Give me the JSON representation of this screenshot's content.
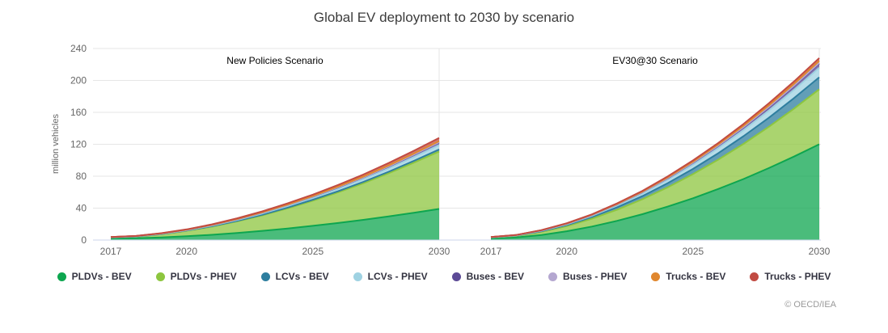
{
  "copyright": "© OECD/IEA",
  "legend": {
    "items": [
      {
        "label": "PLDVs - BEV",
        "color": "#0DA64F"
      },
      {
        "label": "PLDVs - PHEV",
        "color": "#8DC63F"
      },
      {
        "label": "LCVs - BEV",
        "color": "#2E7E9F"
      },
      {
        "label": "LCVs - PHEV",
        "color": "#9FD2E2"
      },
      {
        "label": "Buses - BEV",
        "color": "#5C4A96"
      },
      {
        "label": "Buses - PHEV",
        "color": "#B4A7D0"
      },
      {
        "label": "Trucks - BEV",
        "color": "#E0872E"
      },
      {
        "label": "Trucks - PHEV",
        "color": "#C14B42"
      }
    ]
  },
  "chart_data": {
    "type": "area",
    "stacked": true,
    "title": "Global EV deployment to 2030 by scenario",
    "ylabel": "million vehicles",
    "ylim": [
      0,
      240
    ],
    "y_ticks": [
      0,
      40,
      80,
      120,
      160,
      200,
      240
    ],
    "grid": true,
    "legend_position": "bottom",
    "years": [
      2017,
      2018,
      2019,
      2020,
      2021,
      2022,
      2023,
      2024,
      2025,
      2026,
      2027,
      2028,
      2029,
      2030
    ],
    "x_tick_years": [
      2017,
      2020,
      2025,
      2030
    ],
    "axis_colors": {
      "gridline": "#e6e6e6",
      "axis_line": "#ccd6eb"
    },
    "fill_opacity": 0.75,
    "panels": [
      {
        "label": "New Policies Scenario",
        "total_2030": 128,
        "series": [
          {
            "name": "PLDVs - BEV",
            "values": [
              1.9,
              2.3,
              3.3,
              4.8,
              6.6,
              8.9,
              11.5,
              14.5,
              17.8,
              21.4,
              25.3,
              29.6,
              34.2,
              39.0
            ]
          },
          {
            "name": "PLDVs - PHEV",
            "values": [
              1.2,
              2.0,
              3.9,
              6.6,
              10.2,
              14.5,
              19.5,
              25.2,
              31.5,
              38.4,
              45.9,
              54.1,
              62.8,
              72.0
            ]
          },
          {
            "name": "LCVs - BEV",
            "values": [
              0.2,
              0.2,
              0.3,
              0.4,
              0.5,
              0.6,
              0.8,
              1.0,
              1.2,
              1.4,
              1.7,
              1.9,
              2.2,
              2.5
            ]
          },
          {
            "name": "LCVs - PHEV",
            "values": [
              0.1,
              0.2,
              0.3,
              0.5,
              0.8,
              1.1,
              1.5,
              1.9,
              2.4,
              2.9,
              3.5,
              4.1,
              4.8,
              5.5
            ]
          },
          {
            "name": "Buses - BEV",
            "values": [
              0.4,
              0.4,
              0.5,
              0.6,
              0.7,
              0.9,
              1.1,
              1.3,
              1.5,
              1.8,
              2.0,
              2.3,
              2.7,
              3.0
            ]
          },
          {
            "name": "Buses - PHEV",
            "values": [
              0.0,
              0.0,
              0.0,
              0.1,
              0.1,
              0.1,
              0.1,
              0.2,
              0.2,
              0.3,
              0.3,
              0.4,
              0.4,
              0.5
            ]
          },
          {
            "name": "Trucks - BEV",
            "values": [
              0.0,
              0.0,
              0.1,
              0.1,
              0.2,
              0.3,
              0.4,
              0.5,
              0.6,
              0.8,
              0.9,
              1.1,
              1.3,
              1.5
            ]
          },
          {
            "name": "Trucks - PHEV",
            "values": [
              0.0,
              0.1,
              0.2,
              0.3,
              0.5,
              0.8,
              1.0,
              1.4,
              1.7,
              2.1,
              2.5,
              3.0,
              3.5,
              4.0
            ]
          }
        ]
      },
      {
        "label": "EV30@30 Scenario",
        "total_2030": 228,
        "series": [
          {
            "name": "PLDVs - BEV",
            "values": [
              1.9,
              3.2,
              6.4,
              11.0,
              16.9,
              24.1,
              32.4,
              41.9,
              52.4,
              64.0,
              76.5,
              90.1,
              104.6,
              120.0
            ]
          },
          {
            "name": "PLDVs - PHEV",
            "values": [
              1.2,
              2.0,
              3.8,
              6.4,
              9.8,
              14.0,
              18.7,
              24.2,
              30.2,
              36.8,
              44.0,
              51.8,
              60.1,
              69.0
            ]
          },
          {
            "name": "LCVs - BEV",
            "values": [
              0.2,
              0.4,
              0.8,
              1.3,
              2.1,
              3.0,
              4.0,
              5.2,
              6.5,
              8.0,
              9.6,
              11.2,
              13.1,
              15.0
            ]
          },
          {
            "name": "LCVs - PHEV",
            "values": [
              0.1,
              0.2,
              0.6,
              1.0,
              1.6,
              2.3,
              3.2,
              4.1,
              5.2,
              6.4,
              7.6,
              9.0,
              10.4,
              12.0
            ]
          },
          {
            "name": "Buses - BEV",
            "values": [
              0.4,
              0.5,
              0.6,
              0.8,
              1.0,
              1.3,
              1.6,
              2.0,
              2.4,
              2.8,
              3.3,
              3.8,
              4.4,
              5.0
            ]
          },
          {
            "name": "Buses - PHEV",
            "values": [
              0.0,
              0.0,
              0.1,
              0.1,
              0.1,
              0.2,
              0.3,
              0.4,
              0.4,
              0.5,
              0.6,
              0.8,
              0.9,
              1.0
            ]
          },
          {
            "name": "Trucks - BEV",
            "values": [
              0.0,
              0.0,
              0.1,
              0.2,
              0.3,
              0.5,
              0.6,
              0.8,
              1.1,
              1.3,
              1.6,
              1.9,
              2.2,
              2.5
            ]
          },
          {
            "name": "Trucks - PHEV",
            "values": [
              0.0,
              0.1,
              0.1,
              0.3,
              0.4,
              0.7,
              0.9,
              1.2,
              1.5,
              1.8,
              2.2,
              2.6,
              3.0,
              3.5
            ]
          }
        ]
      }
    ]
  }
}
